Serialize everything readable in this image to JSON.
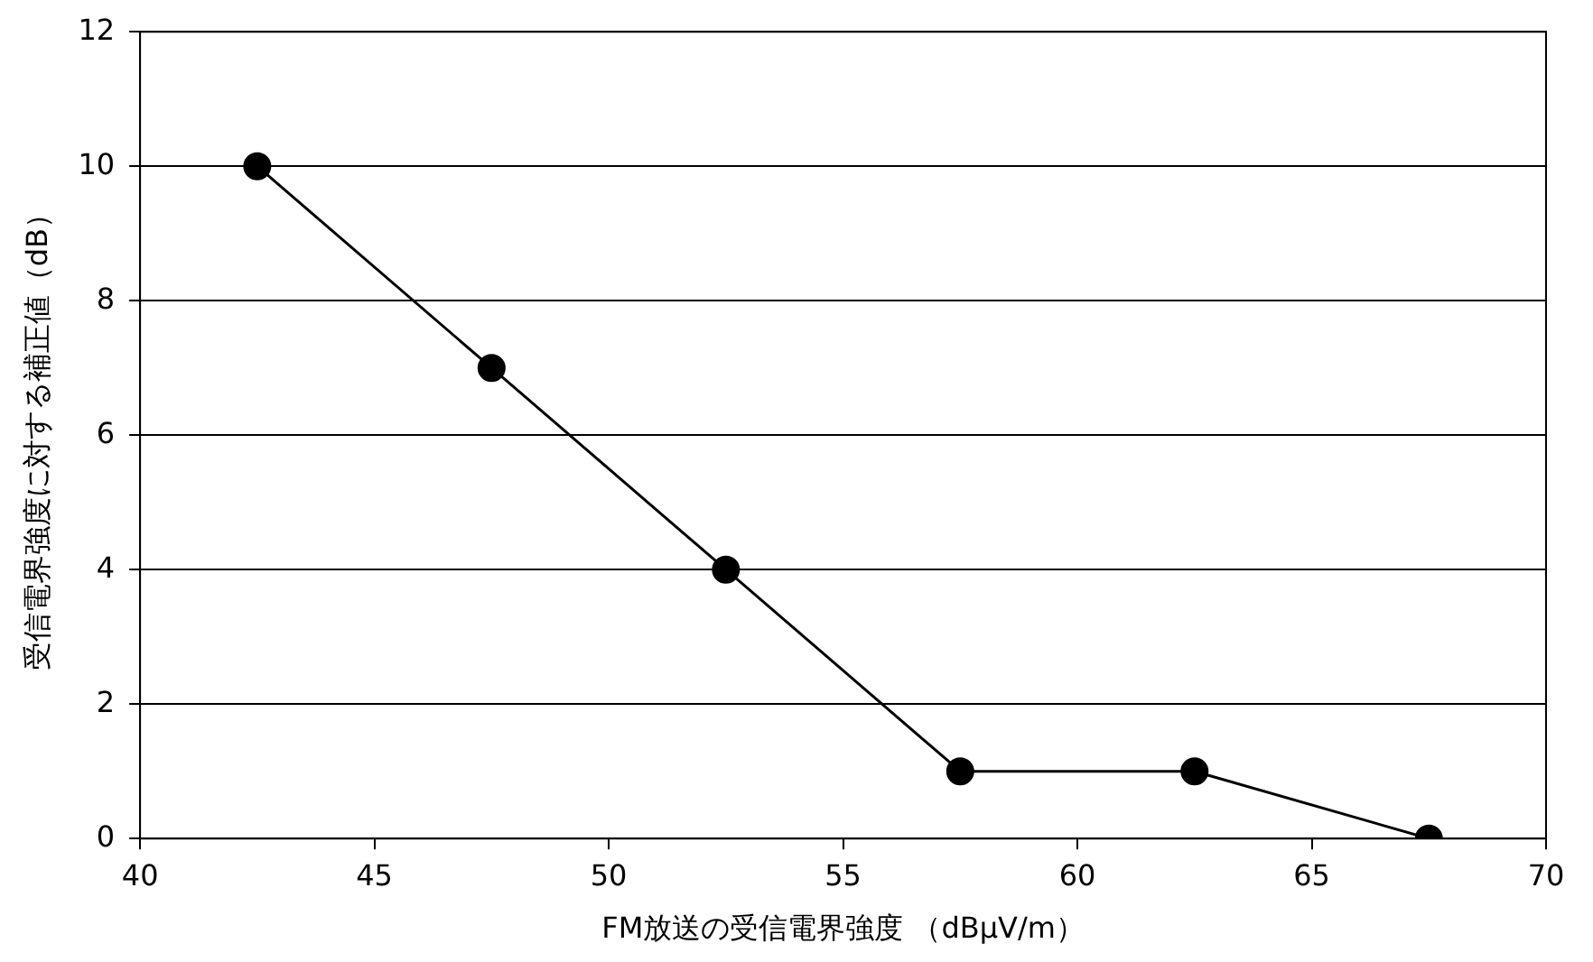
{
  "chart_data": {
    "type": "line",
    "xlabel": "FM放送の受信電界強度 （dBμV/m）",
    "ylabel": "受信電界強度に対する補正値（dB）",
    "x": [
      42.5,
      47.5,
      52.5,
      57.5,
      62.5,
      67.5
    ],
    "series": [
      {
        "color": "#000000",
        "values": [
          10,
          7,
          4,
          1,
          1,
          0
        ]
      }
    ],
    "xlim": [
      40,
      70
    ],
    "xticks": [
      40,
      45,
      50,
      55,
      60,
      65,
      70
    ],
    "ylim": [
      0,
      12
    ],
    "yticks": [
      0,
      2,
      4,
      6,
      8,
      10,
      12
    ],
    "grid": "y",
    "legend": false,
    "marker": "circle",
    "line_style": "solid"
  }
}
